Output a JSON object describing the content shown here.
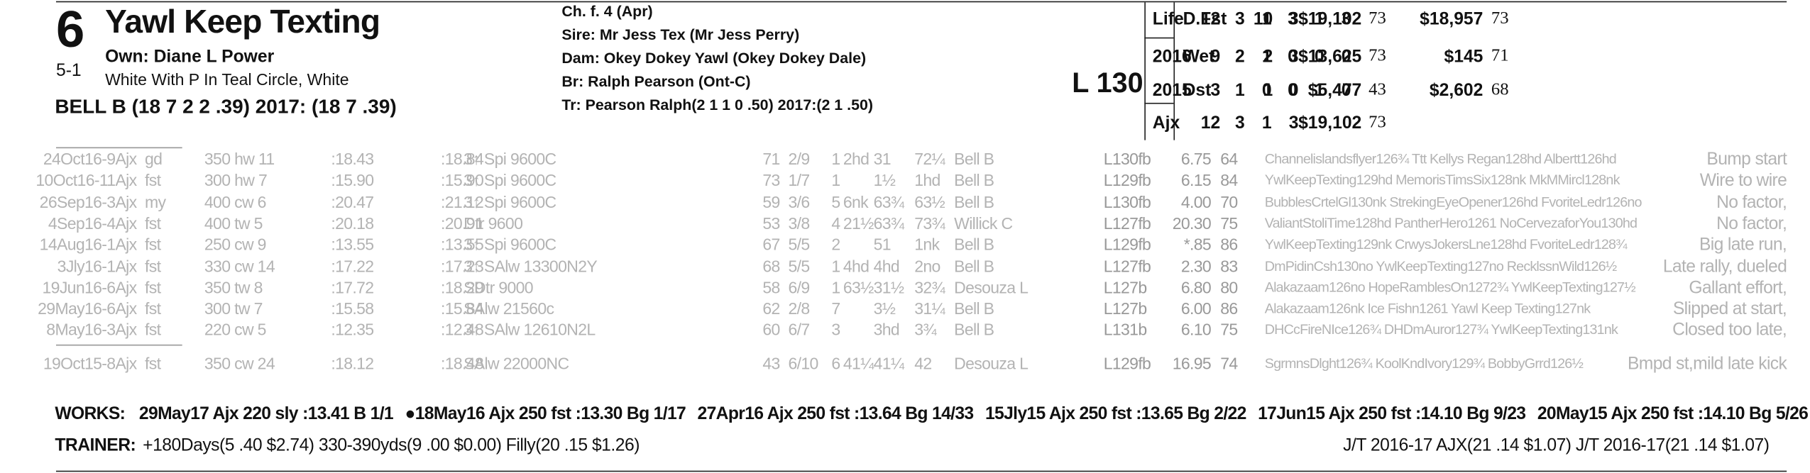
{
  "header": {
    "program": "6",
    "odds": "5-1",
    "horse": "Yawl Keep Texting",
    "owner": "Own: Diane L Power",
    "silks": "White With P In Teal Circle, White",
    "jockey": "BELL B (18 7 2 2 .39) 2017: (18 7 .39)",
    "sex_age": "Ch. f. 4 (Apr)",
    "sire": "Sire: Mr Jess Tex (Mr Jess Perry)",
    "dam": "Dam: Okey Dokey Yawl (Okey Dokey Dale)",
    "breeder": "Br:  Ralph Pearson (Ont-C)",
    "trainer": "Tr:  Pearson Ralph(2 1 1 0 .50)  2017:(2 1 .50)",
    "weight": "L 130"
  },
  "stats_left": [
    [
      "Life",
      "12",
      "3",
      "1",
      "3",
      "$19,102",
      "73"
    ],
    [
      "2016",
      "9",
      "2",
      "1",
      "3",
      "$13,625",
      "73"
    ],
    [
      "2015",
      "3",
      "1",
      "0",
      "0",
      "$5,477",
      "43"
    ],
    [
      "Ajx",
      "12",
      "3",
      "1",
      "3",
      "$19,102",
      "73"
    ]
  ],
  "stats_right": [
    [
      "D.Fst",
      "10",
      "3",
      "1",
      "3",
      "$18,957",
      "73"
    ],
    [
      "Wet",
      "2",
      "0",
      "0",
      "0",
      "$145",
      "71"
    ],
    [
      "Dst",
      "1",
      "0",
      "1",
      "0",
      "$2,602",
      "68"
    ]
  ],
  "past": [
    {
      "date": "24Oct16-9Ajx",
      "cond": "gd",
      "dist": "350 hw 11",
      "f1": ":18.43",
      "fin": ":18.84",
      "race": "3↑ Spi 9600C",
      "fig": "71",
      "fs": "2/9",
      "pp": "1",
      "st": "2hd",
      "c1": "31",
      "fc": "72¼",
      "jockey": "Bell B",
      "wt": "L130fb",
      "odds": "6.75",
      "spd": "64",
      "comment": "Channelislandsflyer126¾ Ttt Kellys Regan128hd Albertt126hd",
      "remark": "Bump start"
    },
    {
      "date": "10Oct16-11Ajx",
      "cond": "fst",
      "dist": "300 hw 7",
      "f1": ":15.90",
      "fin": ":15.90",
      "race": "3↑ Spi 9600C",
      "fig": "73",
      "fs": "1/7",
      "pp": "1",
      "c1": "1½",
      "fc": "1hd",
      "jockey": "Bell B",
      "wt": "L129fb",
      "odds": "6.15",
      "spd": "84",
      "comment": "YwlKeepTexting129hd MemorisTimsSix128nk MkMMircl128nk",
      "remark": "Wire to wire"
    },
    {
      "date": "26Sep16-3Ajx",
      "cond": "my",
      "dist": "400 cw 6",
      "f1": ":20.47",
      "fin": ":21.12",
      "race": "3↑ Spi 9600C",
      "fig": "59",
      "fs": "3/6",
      "pp": "5",
      "st": "6nk",
      "c1": "63¾",
      "fc": "63½",
      "jockey": "Bell B",
      "wt": "L130fb",
      "odds": "4.00",
      "spd": "70",
      "comment": "BubblesCrtelGl130nk StrekingEyeOpener126hd FvoriteLedr126no",
      "remark": "No factor,"
    },
    {
      "date": "4Sep16-4Ajx",
      "cond": "fst",
      "dist": "400 tw 5",
      "f1": ":20.18",
      "fin": ":20.91",
      "race": "Dtr 9600",
      "fig": "53",
      "fs": "3/8",
      "pp": "4",
      "st": "21½",
      "c1": "63¾",
      "fc": "73¾",
      "jockey": "Willick C",
      "wt": "L127fb",
      "odds": "20.30",
      "spd": "75",
      "comment": "ValiantStoliTime128hd PantherHero1261 NoCervezaforYou130hd",
      "remark": "No factor,"
    },
    {
      "date": "14Aug16-1Ajx",
      "cond": "fst",
      "dist": "250 cw 9",
      "f1": ":13.55",
      "fin": ":13.55",
      "race": "3↑ Spi 9600C",
      "fig": "67",
      "fs": "5/5",
      "pp": "2",
      "c1": "51",
      "fc": "1nk",
      "jockey": "Bell B",
      "wt": "L129fb",
      "odds": "*.85",
      "spd": "86",
      "comment": "YwlKeepTexting129nk CrwysJokersLne128hd FvoriteLedr128¾",
      "remark": "Big late run,"
    },
    {
      "date": "3Jly16-1Ajx",
      "cond": "fst",
      "dist": "330 cw 14",
      "f1": ":17.22",
      "fin": ":17.23",
      "race": "3↑ SAlw 13300N2Y",
      "fig": "68",
      "fs": "5/5",
      "pp": "1",
      "st": "4hd",
      "c1": "4hd",
      "fc": "2no",
      "jockey": "Bell B",
      "wt": "L127fb",
      "odds": "2.30",
      "spd": "83",
      "comment": "DmPidinCsh130no YwlKeepTexting127no RecklssnWild126½",
      "remark": "Late rally, dueled"
    },
    {
      "date": "19Jun16-6Ajx",
      "cond": "fst",
      "dist": "350 tw 8",
      "f1": ":17.72",
      "fin": ":18.29",
      "race": "SDtr 9000",
      "fig": "58",
      "fs": "6/9",
      "pp": "1",
      "st": "63½",
      "c1": "31½",
      "fc": "32¾",
      "jockey": "Desouza L",
      "wt": "L127b",
      "odds": "6.80",
      "spd": "80",
      "comment": "Alakazaam126no HopeRamblesOn1272¾ YwlKeepTexting127½",
      "remark": "Gallant effort,"
    },
    {
      "date": "29May16-6Ajx",
      "cond": "fst",
      "dist": "300 tw 7",
      "f1": ":15.58",
      "fin": ":15.84",
      "race": "SAlw 21560c",
      "fig": "62",
      "fs": "2/8",
      "pp": "7",
      "c1": "3½",
      "fc": "31¼",
      "jockey": "Bell B",
      "wt": "L127b",
      "odds": "6.00",
      "spd": "86",
      "comment": "Alakazaam126nk Ice Fishn1261 Yawl Keep Texting127nk",
      "remark": "Slipped at start,"
    },
    {
      "date": "8May16-3Ajx",
      "cond": "fst",
      "dist": "220 cw 5",
      "f1": ":12.35",
      "fin": ":12.48",
      "race": "3↑ SAlw 12610N2L",
      "fig": "60",
      "fs": "6/7",
      "pp": "3",
      "c1": "3hd",
      "fc": "3¾",
      "jockey": "Bell B",
      "wt": "L131b",
      "odds": "6.10",
      "spd": "75",
      "comment": "DHCcFireNIce126¾ DHDmAuror127¾ YwlKeepTexting131nk",
      "remark": "Closed too late,"
    },
    {
      "date": "19Oct15-8Ajx",
      "cond": "fst",
      "dist": "350 cw 24",
      "f1": ":18.12",
      "fin": ":18.48",
      "race": "SAlw 22000NC",
      "fig": "43",
      "fs": "6/10",
      "pp": "6",
      "st": "41¼",
      "c1": "41¼",
      "fc": "42",
      "jockey": "Desouza L",
      "wt": "L129fb",
      "odds": "16.95",
      "spd": "74",
      "comment": "SgrmnsDlght126¾ KoolKndIvory129¾ BobbyGrrd126½",
      "remark": "Bmpd st,mild late kick"
    }
  ],
  "works": {
    "label": "WORKS:",
    "items": [
      "29May17 Ajx 220 sly :13.41 B 1/1",
      "●18May16 Ajx 250 fst :13.30 Bg 1/17",
      "27Apr16 Ajx 250 fst :13.64 Bg 14/33",
      "15Jly15 Ajx 250 fst :13.65 Bg 2/22",
      "17Jun15 Ajx 250 fst :14.10 Bg 9/23",
      "20May15 Ajx 250 fst :14.10 Bg 5/26"
    ]
  },
  "trainer_line": {
    "label": "TRAINER:",
    "stats": "+180Days(5 .40 $2.74) 330-390yds(9 .00 $0.00) Filly(20 .15 $1.26)",
    "jt": "J/T 2016-17 AJX(21 .14 $1.07)  J/T 2016-17(21 .14 $1.07)"
  }
}
